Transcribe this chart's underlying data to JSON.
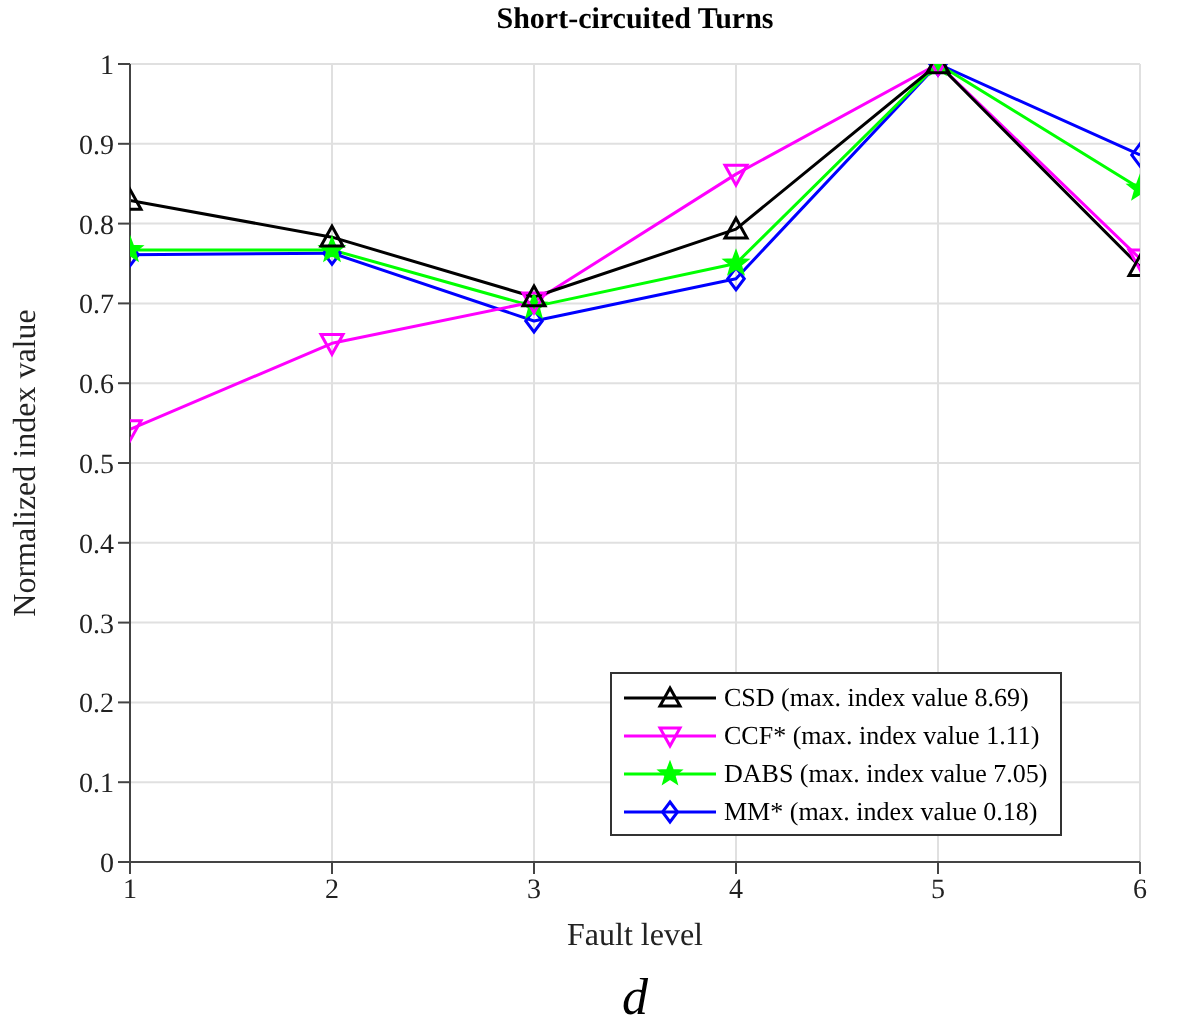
{
  "chart_data": {
    "type": "line",
    "title": "Short-circuited Turns",
    "xlabel": "Fault level",
    "ylabel": "Normalized index value",
    "annotations": [
      "d"
    ],
    "x": [
      1,
      2,
      3,
      4,
      5,
      6
    ],
    "xlim": [
      1,
      6
    ],
    "xticks": [
      1,
      2,
      3,
      4,
      5,
      6
    ],
    "ylim": [
      0,
      1
    ],
    "yticks": [
      0,
      0.1,
      0.2,
      0.3,
      0.4,
      0.5,
      0.6,
      0.7,
      0.8,
      0.9,
      1
    ],
    "grid": true,
    "legend": "bottom right",
    "line_style": "solid",
    "series": [
      {
        "name": "CSD (max. index value 8.69)",
        "color": "#000000",
        "marker": "triangle",
        "values": [
          0.829,
          0.783,
          0.708,
          0.793,
          1,
          0.746
        ]
      },
      {
        "name": "CCF* (max. index value 1.11)",
        "color": "#ff00ff",
        "marker": "triangle_down",
        "values": [
          0.542,
          0.65,
          0.702,
          0.862,
          1,
          0.756
        ]
      },
      {
        "name": "DABS (max. index value 7.05)",
        "color": "#00ff00",
        "marker": "star",
        "values": [
          0.767,
          0.767,
          0.696,
          0.75,
          1,
          0.844
        ]
      },
      {
        "name": "MM* (max. index value 0.18)",
        "color": "#0000ff",
        "marker": "diamond",
        "values": [
          0.761,
          0.763,
          0.678,
          0.731,
          1,
          0.886
        ]
      }
    ]
  }
}
